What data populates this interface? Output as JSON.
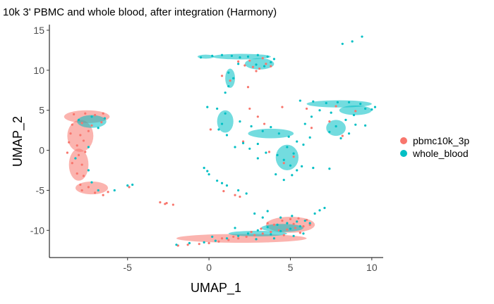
{
  "chart_data": {
    "type": "scatter",
    "title": "10k 3' PBMC and whole blood, after integration (Harmony)",
    "xlabel": "UMAP_1",
    "ylabel": "UMAP_2",
    "xlim": [
      -9.8,
      10.7
    ],
    "ylim": [
      -13.4,
      15.7
    ],
    "grid": false,
    "legend_position": "right",
    "x_ticks": [
      {
        "value": -5,
        "label": "-5"
      },
      {
        "value": 0,
        "label": "0"
      },
      {
        "value": 5,
        "label": "5"
      },
      {
        "value": 10,
        "label": "10"
      }
    ],
    "y_ticks": [
      {
        "value": -10,
        "label": "-10"
      },
      {
        "value": -5,
        "label": "-5"
      },
      {
        "value": 0,
        "label": "0"
      },
      {
        "value": 5,
        "label": "5"
      },
      {
        "value": 10,
        "label": "10"
      },
      {
        "value": 15,
        "label": "15"
      }
    ],
    "series": [
      {
        "name": "pbmc10k_3p",
        "color": "#F8766D",
        "points": [
          [
            -8.3,
            4.5
          ],
          [
            -7.6,
            4.6
          ],
          [
            -7.0,
            4.4
          ],
          [
            -6.5,
            4.6
          ],
          [
            -8.4,
            3.2
          ],
          [
            -7.8,
            3.4
          ],
          [
            -7.2,
            3.1
          ],
          [
            -6.6,
            3.5
          ],
          [
            -8.5,
            2.1
          ],
          [
            -7.9,
            1.9
          ],
          [
            -7.4,
            2.4
          ],
          [
            -8.6,
            1.0
          ],
          [
            -8.1,
            0.6
          ],
          [
            -7.7,
            1.2
          ],
          [
            -8.7,
            -0.3
          ],
          [
            -8.0,
            -0.6
          ],
          [
            -7.6,
            -0.2
          ],
          [
            -8.4,
            -1.6
          ],
          [
            -7.8,
            -1.8
          ],
          [
            -8.1,
            -2.9
          ],
          [
            -7.7,
            -3.2
          ],
          [
            -7.9,
            -4.3
          ],
          [
            -7.4,
            -4.6
          ],
          [
            -7.0,
            -5.3
          ],
          [
            -6.5,
            -5.6
          ],
          [
            -6.2,
            -5.2
          ],
          [
            -7.8,
            -5.0
          ],
          [
            -1.9,
            -11.9
          ],
          [
            -1.3,
            -11.8
          ],
          [
            -0.6,
            -11.7
          ],
          [
            0.0,
            -11.6
          ],
          [
            0.6,
            -11.4
          ],
          [
            1.2,
            -11.2
          ],
          [
            1.8,
            -11.0
          ],
          [
            2.3,
            -10.8
          ],
          [
            2.8,
            -10.6
          ],
          [
            3.3,
            -10.4
          ],
          [
            3.8,
            -10.2
          ],
          [
            4.3,
            -10.0
          ],
          [
            4.8,
            -9.9
          ],
          [
            5.3,
            -9.7
          ],
          [
            5.8,
            -9.5
          ],
          [
            6.2,
            -9.3
          ],
          [
            4.5,
            -8.8
          ],
          [
            5.0,
            -8.6
          ],
          [
            5.5,
            -8.5
          ],
          [
            6.0,
            -8.7
          ],
          [
            5.2,
            -9.2
          ],
          [
            4.0,
            -9.3
          ],
          [
            3.2,
            -9.8
          ],
          [
            2.6,
            -10.2
          ],
          [
            1.5,
            -10.8
          ],
          [
            0.8,
            -11.0
          ],
          [
            4.6,
            -10.6
          ],
          [
            5.6,
            -10.3
          ],
          [
            3.6,
            -9.1
          ],
          [
            -3.0,
            -6.5
          ],
          [
            -2.6,
            -6.6
          ],
          [
            -2.2,
            -6.8
          ],
          [
            -2.7,
            -6.7
          ],
          [
            1.6,
            -5.6
          ],
          [
            1.9,
            -5.8
          ],
          [
            0.9,
            -5.1
          ],
          [
            2.2,
            10.6
          ],
          [
            2.7,
            10.4
          ],
          [
            3.1,
            10.2
          ],
          [
            3.5,
            10.8
          ],
          [
            2.5,
            11.2
          ],
          [
            3.8,
            10.5
          ],
          [
            3.3,
            11.5
          ],
          [
            2.9,
            9.9
          ],
          [
            1.8,
            11.1
          ],
          [
            2.4,
            7.9
          ],
          [
            1.3,
            8.7
          ],
          [
            0.8,
            9.3
          ],
          [
            3.0,
            4.2
          ],
          [
            2.5,
            5.2
          ],
          [
            3.4,
            3.3
          ],
          [
            4.5,
            5.4
          ],
          [
            6.0,
            5.2
          ],
          [
            7.4,
            3.6
          ],
          [
            8.2,
            1.8
          ],
          [
            2.1,
            1.1
          ],
          [
            3.7,
            -0.2
          ],
          [
            5.2,
            -0.8
          ],
          [
            0.1,
            2.6
          ],
          [
            4.6,
            -1.6
          ],
          [
            6.3,
            2.8
          ],
          [
            9.0,
            4.9
          ],
          [
            7.8,
            5.5
          ],
          [
            -4.9,
            -4.6
          ]
        ]
      },
      {
        "name": "whole_blood",
        "color": "#00BFC4",
        "points": [
          [
            -7.2,
            4.2
          ],
          [
            -6.4,
            4.0
          ],
          [
            -8.0,
            3.8
          ],
          [
            -6.8,
            2.8
          ],
          [
            -7.4,
            0.4
          ],
          [
            -8.2,
            -1.0
          ],
          [
            -7.4,
            -2.5
          ],
          [
            -7.2,
            -4.0
          ],
          [
            -6.8,
            -5.0
          ],
          [
            -5.8,
            -5.0
          ],
          [
            -5.0,
            -4.4
          ],
          [
            -4.7,
            -4.3
          ],
          [
            -0.5,
            11.6
          ],
          [
            0.2,
            11.8
          ],
          [
            0.8,
            11.9
          ],
          [
            1.4,
            11.8
          ],
          [
            1.9,
            11.6
          ],
          [
            2.4,
            11.7
          ],
          [
            3.0,
            11.9
          ],
          [
            3.6,
            11.7
          ],
          [
            4.0,
            11.4
          ],
          [
            3.8,
            11.0
          ],
          [
            3.4,
            10.5
          ],
          [
            2.9,
            10.7
          ],
          [
            1.8,
            10.8
          ],
          [
            1.2,
            9.7
          ],
          [
            1.5,
            9.0
          ],
          [
            1.2,
            8.0
          ],
          [
            1.0,
            7.2
          ],
          [
            9.4,
            14.2
          ],
          [
            8.8,
            13.6
          ],
          [
            8.2,
            13.3
          ],
          [
            -0.1,
            5.4
          ],
          [
            0.5,
            5.2
          ],
          [
            1.0,
            4.6
          ],
          [
            0.8,
            3.3
          ],
          [
            1.1,
            1.9
          ],
          [
            0.6,
            2.6
          ],
          [
            1.9,
            3.6
          ],
          [
            2.6,
            3.0
          ],
          [
            3.3,
            2.4
          ],
          [
            3.8,
            2.9
          ],
          [
            4.3,
            2.1
          ],
          [
            4.9,
            1.7
          ],
          [
            5.4,
            1.1
          ],
          [
            2.1,
            0.9
          ],
          [
            1.6,
            0.4
          ],
          [
            2.5,
            0.2
          ],
          [
            3.0,
            0.8
          ],
          [
            3.5,
            -0.3
          ],
          [
            4.2,
            -0.6
          ],
          [
            4.8,
            0.4
          ],
          [
            5.2,
            -0.4
          ],
          [
            4.6,
            -1.2
          ],
          [
            5.0,
            -1.9
          ],
          [
            5.4,
            -2.5
          ],
          [
            5.1,
            -3.1
          ],
          [
            4.6,
            -3.7
          ],
          [
            5.7,
            -2.0
          ],
          [
            6.4,
            -2.2
          ],
          [
            7.4,
            -2.3
          ],
          [
            3.0,
            -1.0
          ],
          [
            4.1,
            -3.0
          ],
          [
            5.8,
            0.7
          ],
          [
            6.2,
            1.6
          ],
          [
            5.6,
            6.2
          ],
          [
            6.4,
            6.1
          ],
          [
            7.2,
            5.9
          ],
          [
            7.9,
            6.0
          ],
          [
            8.6,
            6.0
          ],
          [
            9.3,
            5.8
          ],
          [
            10.0,
            5.1
          ],
          [
            10.2,
            5.4
          ],
          [
            9.6,
            5.2
          ],
          [
            8.9,
            4.4
          ],
          [
            8.4,
            3.8
          ],
          [
            7.8,
            3.0
          ],
          [
            7.4,
            2.3
          ],
          [
            8.1,
            1.5
          ],
          [
            8.6,
            2.1
          ],
          [
            9.0,
            3.2
          ],
          [
            6.8,
            5.0
          ],
          [
            7.5,
            4.7
          ],
          [
            9.6,
            3.1
          ],
          [
            6.3,
            4.2
          ],
          [
            5.9,
            3.3
          ],
          [
            -0.3,
            -2.2
          ],
          [
            0.0,
            -3.0
          ],
          [
            0.5,
            -3.8
          ],
          [
            1.1,
            -4.4
          ],
          [
            1.8,
            -5.0
          ],
          [
            2.3,
            -5.4
          ],
          [
            -0.1,
            -2.6
          ],
          [
            0.8,
            -4.1
          ],
          [
            -2.0,
            -11.8
          ],
          [
            -1.2,
            -11.6
          ],
          [
            -0.3,
            -11.5
          ],
          [
            0.4,
            -11.3
          ],
          [
            1.1,
            -11.0
          ],
          [
            1.8,
            -10.7
          ],
          [
            2.4,
            -10.4
          ],
          [
            3.0,
            -10.0
          ],
          [
            3.6,
            -9.6
          ],
          [
            4.2,
            -9.3
          ],
          [
            4.8,
            -9.1
          ],
          [
            5.4,
            -8.9
          ],
          [
            5.9,
            -8.8
          ],
          [
            6.2,
            -9.1
          ],
          [
            5.6,
            -9.5
          ],
          [
            5.0,
            -9.8
          ],
          [
            4.4,
            -10.1
          ],
          [
            3.8,
            -10.5
          ],
          [
            4.4,
            -8.4
          ],
          [
            5.1,
            -8.2
          ],
          [
            3.3,
            -8.4
          ],
          [
            2.8,
            -7.9
          ],
          [
            3.6,
            -7.6
          ],
          [
            6.5,
            -7.9
          ],
          [
            6.8,
            -7.5
          ],
          [
            7.1,
            -7.2
          ],
          [
            5.8,
            -10.4
          ],
          [
            5.2,
            -10.7
          ],
          [
            4.0,
            -11.0
          ],
          [
            2.9,
            -11.1
          ],
          [
            1.6,
            -9.7
          ],
          [
            0.2,
            -10.8
          ]
        ]
      }
    ]
  }
}
